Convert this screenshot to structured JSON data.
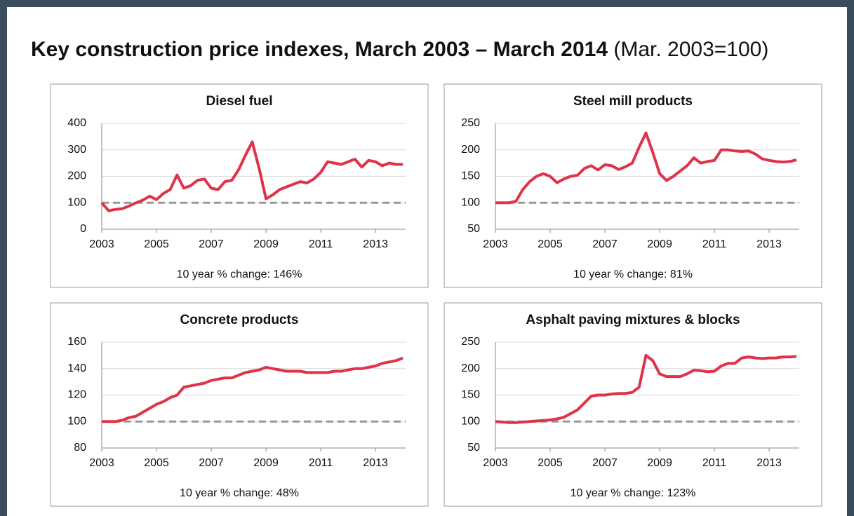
{
  "slide": {
    "title": "Key construction price indexes, March 2003 – March 2014",
    "subtitle": "(Mar. 2003=100)"
  },
  "chart_data": [
    {
      "type": "line",
      "title": "Diesel fuel",
      "note": "10 year % change: 146%",
      "x": [
        2003,
        2003.25,
        2003.5,
        2003.75,
        2004,
        2004.25,
        2004.5,
        2004.75,
        2005,
        2005.25,
        2005.5,
        2005.75,
        2006,
        2006.25,
        2006.5,
        2006.75,
        2007,
        2007.25,
        2007.5,
        2007.75,
        2008,
        2008.25,
        2008.5,
        2008.75,
        2009,
        2009.25,
        2009.5,
        2009.75,
        2010,
        2010.25,
        2010.5,
        2010.75,
        2011,
        2011.25,
        2011.5,
        2011.75,
        2012,
        2012.25,
        2012.5,
        2012.75,
        2013,
        2013.25,
        2013.5,
        2013.75,
        2014
      ],
      "series": [
        {
          "color": "#e0334a",
          "values": [
            100,
            70,
            75,
            78,
            88,
            100,
            110,
            125,
            112,
            135,
            150,
            205,
            155,
            165,
            185,
            190,
            155,
            150,
            180,
            185,
            225,
            280,
            330,
            230,
            115,
            130,
            150,
            160,
            170,
            180,
            175,
            190,
            215,
            255,
            250,
            245,
            255,
            265,
            235,
            260,
            255,
            240,
            250,
            245,
            245
          ]
        }
      ],
      "xlim": [
        2003,
        2014.1
      ],
      "xticks": [
        2003,
        2005,
        2007,
        2009,
        2011,
        2013
      ],
      "ylim": [
        0,
        400
      ],
      "yticks": [
        0,
        100,
        200,
        300,
        400
      ],
      "grid": true,
      "reference_line": {
        "value": 100,
        "color": "#999999",
        "style": "dashed"
      }
    },
    {
      "type": "line",
      "title": "Steel mill products",
      "note": "10 year % change: 81%",
      "x": [
        2003,
        2003.25,
        2003.5,
        2003.75,
        2004,
        2004.25,
        2004.5,
        2004.75,
        2005,
        2005.25,
        2005.5,
        2005.75,
        2006,
        2006.25,
        2006.5,
        2006.75,
        2007,
        2007.25,
        2007.5,
        2007.75,
        2008,
        2008.25,
        2008.5,
        2008.75,
        2009,
        2009.25,
        2009.5,
        2009.75,
        2010,
        2010.25,
        2010.5,
        2010.75,
        2011,
        2011.25,
        2011.5,
        2011.75,
        2012,
        2012.25,
        2012.5,
        2012.75,
        2013,
        2013.25,
        2013.5,
        2013.75,
        2014
      ],
      "series": [
        {
          "color": "#e0334a",
          "values": [
            100,
            100,
            100,
            103,
            125,
            140,
            150,
            155,
            150,
            138,
            145,
            150,
            152,
            165,
            170,
            162,
            172,
            170,
            163,
            168,
            175,
            205,
            232,
            195,
            155,
            142,
            150,
            160,
            170,
            185,
            175,
            178,
            180,
            200,
            200,
            198,
            197,
            198,
            192,
            183,
            180,
            178,
            177,
            178,
            181
          ]
        }
      ],
      "xlim": [
        2003,
        2014.1
      ],
      "xticks": [
        2003,
        2005,
        2007,
        2009,
        2011,
        2013
      ],
      "ylim": [
        50,
        250
      ],
      "yticks": [
        50,
        100,
        150,
        200,
        250
      ],
      "grid": true,
      "reference_line": {
        "value": 100,
        "color": "#999999",
        "style": "dashed"
      }
    },
    {
      "type": "line",
      "title": "Concrete products",
      "note": "10 year % change: 48%",
      "x": [
        2003,
        2003.25,
        2003.5,
        2003.75,
        2004,
        2004.25,
        2004.5,
        2004.75,
        2005,
        2005.25,
        2005.5,
        2005.75,
        2006,
        2006.25,
        2006.5,
        2006.75,
        2007,
        2007.25,
        2007.5,
        2007.75,
        2008,
        2008.25,
        2008.5,
        2008.75,
        2009,
        2009.25,
        2009.5,
        2009.75,
        2010,
        2010.25,
        2010.5,
        2010.75,
        2011,
        2011.25,
        2011.5,
        2011.75,
        2012,
        2012.25,
        2012.5,
        2012.75,
        2013,
        2013.25,
        2013.5,
        2013.75,
        2014
      ],
      "series": [
        {
          "color": "#e0334a",
          "values": [
            100,
            100,
            100,
            101,
            103,
            104,
            107,
            110,
            113,
            115,
            118,
            120,
            126,
            127,
            128,
            129,
            131,
            132,
            133,
            133,
            135,
            137,
            138,
            139,
            141,
            140,
            139,
            138,
            138,
            138,
            137,
            137,
            137,
            137,
            138,
            138,
            139,
            140,
            140,
            141,
            142,
            144,
            145,
            146,
            148
          ]
        }
      ],
      "xlim": [
        2003,
        2014.1
      ],
      "xticks": [
        2003,
        2005,
        2007,
        2009,
        2011,
        2013
      ],
      "ylim": [
        80,
        160
      ],
      "yticks": [
        80,
        100,
        120,
        140,
        160
      ],
      "grid": true,
      "reference_line": {
        "value": 100,
        "color": "#999999",
        "style": "dashed"
      }
    },
    {
      "type": "line",
      "title": "Asphalt paving mixtures & blocks",
      "note": "10 year % change: 123%",
      "x": [
        2003,
        2003.25,
        2003.5,
        2003.75,
        2004,
        2004.25,
        2004.5,
        2004.75,
        2005,
        2005.25,
        2005.5,
        2005.75,
        2006,
        2006.25,
        2006.5,
        2006.75,
        2007,
        2007.25,
        2007.5,
        2007.75,
        2008,
        2008.25,
        2008.5,
        2008.75,
        2009,
        2009.25,
        2009.5,
        2009.75,
        2010,
        2010.25,
        2010.5,
        2010.75,
        2011,
        2011.25,
        2011.5,
        2011.75,
        2012,
        2012.25,
        2012.5,
        2012.75,
        2013,
        2013.25,
        2013.5,
        2013.75,
        2014
      ],
      "series": [
        {
          "color": "#e0334a",
          "values": [
            100,
            99,
            98,
            98,
            99,
            100,
            101,
            102,
            103,
            105,
            108,
            115,
            122,
            135,
            148,
            150,
            150,
            152,
            153,
            153,
            155,
            165,
            225,
            215,
            190,
            185,
            185,
            185,
            190,
            197,
            196,
            194,
            195,
            205,
            210,
            210,
            220,
            222,
            220,
            219,
            220,
            220,
            222,
            222,
            223
          ]
        }
      ],
      "xlim": [
        2003,
        2014.1
      ],
      "xticks": [
        2003,
        2005,
        2007,
        2009,
        2011,
        2013
      ],
      "ylim": [
        50,
        250
      ],
      "yticks": [
        50,
        100,
        150,
        200,
        250
      ],
      "grid": true,
      "reference_line": {
        "value": 100,
        "color": "#999999",
        "style": "dashed"
      }
    }
  ]
}
